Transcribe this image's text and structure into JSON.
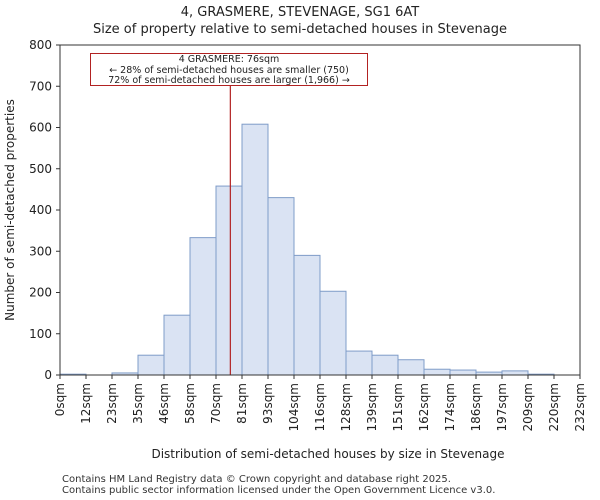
{
  "header": {
    "title": "4, GRASMERE, STEVENAGE, SG1 6AT",
    "subtitle": "Size of property relative to semi-detached houses in Stevenage"
  },
  "chart_data": {
    "type": "bar",
    "title": "4, GRASMERE, STEVENAGE, SG1 6AT",
    "subtitle": "Size of property relative to semi-detached houses in Stevenage",
    "xlabel": "Distribution of semi-detached houses by size in Stevenage",
    "ylabel": "Number of semi-detached properties",
    "bin_edges": [
      0,
      11.6,
      23.2,
      34.8,
      46.4,
      58,
      69.6,
      81.2,
      92.8,
      104.4,
      116,
      127.6,
      139.2,
      150.8,
      162.4,
      174,
      185.6,
      197.2,
      208.8,
      220.4,
      232
    ],
    "tick_labels": [
      "0sqm",
      "12sqm",
      "23sqm",
      "35sqm",
      "46sqm",
      "58sqm",
      "70sqm",
      "81sqm",
      "93sqm",
      "104sqm",
      "116sqm",
      "128sqm",
      "139sqm",
      "151sqm",
      "162sqm",
      "174sqm",
      "186sqm",
      "197sqm",
      "209sqm",
      "220sqm",
      "232sqm"
    ],
    "values": [
      2,
      0,
      5,
      48,
      145,
      333,
      458,
      608,
      430,
      290,
      203,
      58,
      48,
      37,
      14,
      12,
      7,
      10,
      2,
      0
    ],
    "ylim": [
      0,
      800
    ],
    "yticks": [
      0,
      100,
      200,
      300,
      400,
      500,
      600,
      700,
      800
    ],
    "marker": {
      "value": 76,
      "label": "4 GRASMERE: 76sqm"
    },
    "annotation": {
      "line1": "4 GRASMERE: 76sqm",
      "line2": "← 28% of semi-detached houses are smaller (750)",
      "line3": "72% of semi-detached houses are larger (1,966) →"
    },
    "colors": {
      "bar_fill": "#dae3f3",
      "bar_stroke": "#7f9cc8",
      "marker": "#b22222"
    }
  },
  "footer": {
    "line1": "Contains HM Land Registry data © Crown copyright and database right 2025.",
    "line2": "Contains public sector information licensed under the Open Government Licence v3.0."
  }
}
